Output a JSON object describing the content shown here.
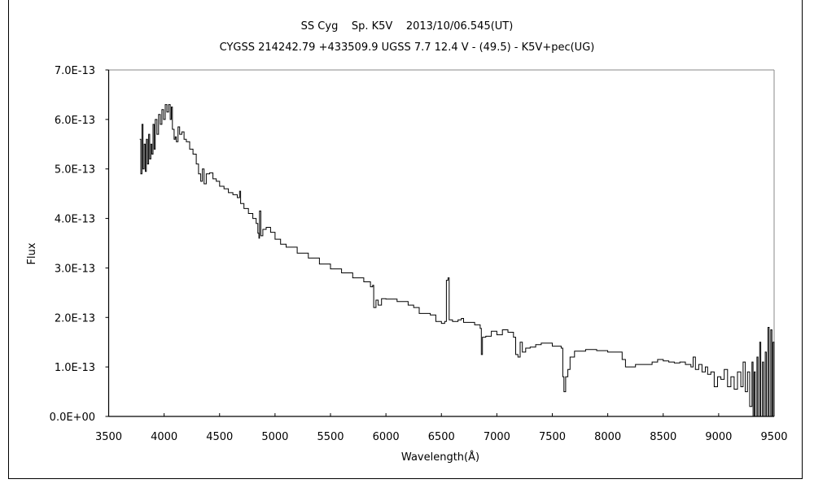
{
  "chart_data": {
    "type": "line",
    "title": "SS Cyg    Sp. K5V    2013/10/06.545(UT)",
    "subtitle": "CYGSS 214242.79 +433509.9 UGSS 7.7 12.4 V - (49.5) - K5V+pec(UG)",
    "xlabel": "Wavelength(Å)",
    "ylabel": "Flux",
    "xlim": [
      3500,
      9500
    ],
    "ylim": [
      0,
      7e-13
    ],
    "xticks": [
      "3500",
      "4000",
      "4500",
      "5000",
      "5500",
      "6000",
      "6500",
      "7000",
      "7500",
      "8000",
      "8500",
      "9000",
      "9500"
    ],
    "yticks": [
      "0.0E+00",
      "1.0E-13",
      "2.0E-13",
      "3.0E-13",
      "4.0E-13",
      "5.0E-13",
      "6.0E-13",
      "7.0E-13"
    ],
    "grid": false,
    "line_color": "#000000",
    "y_unit_scale": 1e-13,
    "series": [
      {
        "points": [
          [
            3780,
            5.6
          ],
          [
            3790,
            4.9
          ],
          [
            3800,
            5.9
          ],
          [
            3810,
            5.0
          ],
          [
            3820,
            5.5
          ],
          [
            3830,
            4.95
          ],
          [
            3840,
            5.6
          ],
          [
            3850,
            5.1
          ],
          [
            3860,
            5.7
          ],
          [
            3870,
            5.2
          ],
          [
            3880,
            5.5
          ],
          [
            3890,
            5.3
          ],
          [
            3900,
            5.9
          ],
          [
            3910,
            5.4
          ],
          [
            3920,
            6.0
          ],
          [
            3935,
            5.7
          ],
          [
            3950,
            6.1
          ],
          [
            3965,
            5.9
          ],
          [
            3980,
            6.2
          ],
          [
            3995,
            6.0
          ],
          [
            4010,
            6.3
          ],
          [
            4025,
            6.15
          ],
          [
            4040,
            6.3
          ],
          [
            4055,
            6.0
          ],
          [
            4065,
            6.25
          ],
          [
            4075,
            5.8
          ],
          [
            4090,
            5.6
          ],
          [
            4100,
            5.65
          ],
          [
            4110,
            5.55
          ],
          [
            4125,
            5.85
          ],
          [
            4140,
            5.7
          ],
          [
            4160,
            5.75
          ],
          [
            4180,
            5.6
          ],
          [
            4200,
            5.55
          ],
          [
            4230,
            5.4
          ],
          [
            4260,
            5.3
          ],
          [
            4290,
            5.1
          ],
          [
            4310,
            4.9
          ],
          [
            4330,
            4.75
          ],
          [
            4345,
            5.0
          ],
          [
            4360,
            4.7
          ],
          [
            4380,
            4.9
          ],
          [
            4410,
            4.92
          ],
          [
            4440,
            4.8
          ],
          [
            4470,
            4.75
          ],
          [
            4500,
            4.65
          ],
          [
            4540,
            4.6
          ],
          [
            4580,
            4.52
          ],
          [
            4620,
            4.48
          ],
          [
            4660,
            4.42
          ],
          [
            4680,
            4.55
          ],
          [
            4690,
            4.3
          ],
          [
            4720,
            4.2
          ],
          [
            4760,
            4.1
          ],
          [
            4800,
            4.0
          ],
          [
            4830,
            3.9
          ],
          [
            4845,
            3.7
          ],
          [
            4855,
            3.6
          ],
          [
            4860,
            4.15
          ],
          [
            4866,
            4.15
          ],
          [
            4872,
            3.65
          ],
          [
            4890,
            3.78
          ],
          [
            4920,
            3.82
          ],
          [
            4960,
            3.72
          ],
          [
            5000,
            3.58
          ],
          [
            5050,
            3.48
          ],
          [
            5100,
            3.42
          ],
          [
            5200,
            3.3
          ],
          [
            5300,
            3.2
          ],
          [
            5400,
            3.08
          ],
          [
            5500,
            2.98
          ],
          [
            5600,
            2.9
          ],
          [
            5700,
            2.8
          ],
          [
            5800,
            2.72
          ],
          [
            5860,
            2.62
          ],
          [
            5880,
            2.65
          ],
          [
            5890,
            2.2
          ],
          [
            5910,
            2.35
          ],
          [
            5930,
            2.25
          ],
          [
            5960,
            2.38
          ],
          [
            6000,
            2.37
          ],
          [
            6100,
            2.32
          ],
          [
            6200,
            2.25
          ],
          [
            6250,
            2.2
          ],
          [
            6300,
            2.08
          ],
          [
            6400,
            2.05
          ],
          [
            6450,
            1.92
          ],
          [
            6500,
            1.88
          ],
          [
            6530,
            1.92
          ],
          [
            6545,
            2.75
          ],
          [
            6560,
            2.8
          ],
          [
            6570,
            1.95
          ],
          [
            6600,
            1.92
          ],
          [
            6650,
            1.95
          ],
          [
            6680,
            1.98
          ],
          [
            6700,
            1.9
          ],
          [
            6800,
            1.85
          ],
          [
            6850,
            1.78
          ],
          [
            6860,
            1.25
          ],
          [
            6870,
            1.6
          ],
          [
            6900,
            1.62
          ],
          [
            6950,
            1.72
          ],
          [
            7000,
            1.65
          ],
          [
            7050,
            1.75
          ],
          [
            7100,
            1.7
          ],
          [
            7150,
            1.6
          ],
          [
            7170,
            1.25
          ],
          [
            7190,
            1.2
          ],
          [
            7210,
            1.5
          ],
          [
            7230,
            1.3
          ],
          [
            7260,
            1.38
          ],
          [
            7300,
            1.4
          ],
          [
            7350,
            1.45
          ],
          [
            7400,
            1.48
          ],
          [
            7500,
            1.42
          ],
          [
            7580,
            1.38
          ],
          [
            7595,
            0.8
          ],
          [
            7605,
            0.5
          ],
          [
            7620,
            0.8
          ],
          [
            7640,
            0.95
          ],
          [
            7660,
            1.2
          ],
          [
            7700,
            1.32
          ],
          [
            7800,
            1.35
          ],
          [
            7900,
            1.33
          ],
          [
            8000,
            1.3
          ],
          [
            8100,
            1.3
          ],
          [
            8130,
            1.15
          ],
          [
            8160,
            1.0
          ],
          [
            8200,
            1.0
          ],
          [
            8250,
            1.05
          ],
          [
            8300,
            1.05
          ],
          [
            8400,
            1.1
          ],
          [
            8450,
            1.15
          ],
          [
            8500,
            1.12
          ],
          [
            8550,
            1.1
          ],
          [
            8600,
            1.08
          ],
          [
            8650,
            1.1
          ],
          [
            8700,
            1.05
          ],
          [
            8750,
            1.0
          ],
          [
            8770,
            1.2
          ],
          [
            8790,
            0.95
          ],
          [
            8820,
            1.05
          ],
          [
            8850,
            0.9
          ],
          [
            8880,
            1.0
          ],
          [
            8900,
            0.85
          ],
          [
            8930,
            0.9
          ],
          [
            8960,
            0.6
          ],
          [
            8990,
            0.8
          ],
          [
            9020,
            0.75
          ],
          [
            9050,
            0.95
          ],
          [
            9080,
            0.6
          ],
          [
            9110,
            0.8
          ],
          [
            9140,
            0.55
          ],
          [
            9170,
            0.9
          ],
          [
            9200,
            0.6
          ],
          [
            9220,
            1.1
          ],
          [
            9240,
            0.5
          ],
          [
            9260,
            0.9
          ],
          [
            9280,
            0.2
          ],
          [
            9300,
            1.1
          ],
          [
            9310,
            0.0
          ],
          [
            9320,
            0.9
          ],
          [
            9330,
            0.0
          ],
          [
            9345,
            1.2
          ],
          [
            9355,
            0.0
          ],
          [
            9370,
            1.5
          ],
          [
            9380,
            0.0
          ],
          [
            9395,
            1.1
          ],
          [
            9405,
            0.0
          ],
          [
            9420,
            1.3
          ],
          [
            9430,
            0.0
          ],
          [
            9445,
            1.8
          ],
          [
            9455,
            0.0
          ],
          [
            9470,
            1.75
          ],
          [
            9480,
            0.0
          ],
          [
            9490,
            1.5
          ],
          [
            9500,
            0.0
          ]
        ]
      }
    ]
  }
}
